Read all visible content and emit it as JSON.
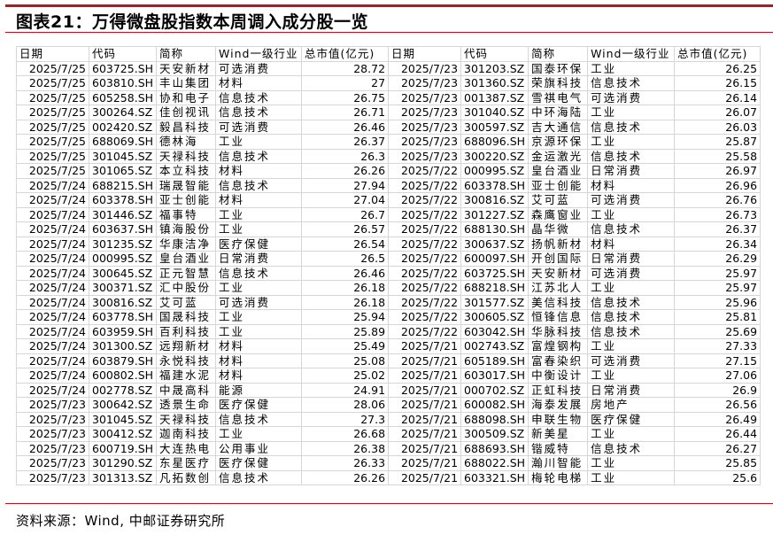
{
  "title": "图表21：万得微盘股指数本周调入成分股一览",
  "source": "资料来源：Wind, 中邮证券研究所",
  "accent_color": "#c0121e",
  "columns": [
    "日期",
    "代码",
    "简称",
    "Wind一级行业",
    "总市值(亿元)"
  ],
  "left_rows": [
    [
      "2025/7/25",
      "603725.SH",
      "天安新材",
      "可选消费",
      "28.72"
    ],
    [
      "2025/7/25",
      "603810.SH",
      "丰山集团",
      "材料",
      "27"
    ],
    [
      "2025/7/25",
      "605258.SH",
      "协和电子",
      "信息技术",
      "26.75"
    ],
    [
      "2025/7/25",
      "300264.SZ",
      "佳创视讯",
      "信息技术",
      "26.71"
    ],
    [
      "2025/7/25",
      "002420.SZ",
      "毅昌科技",
      "可选消费",
      "26.46"
    ],
    [
      "2025/7/25",
      "688069.SH",
      "德林海",
      "工业",
      "26.37"
    ],
    [
      "2025/7/25",
      "301045.SZ",
      "天禄科技",
      "信息技术",
      "26.3"
    ],
    [
      "2025/7/25",
      "301065.SZ",
      "本立科技",
      "材料",
      "26.26"
    ],
    [
      "2025/7/24",
      "688215.SH",
      "瑞晟智能",
      "信息技术",
      "27.94"
    ],
    [
      "2025/7/24",
      "603378.SH",
      "亚士创能",
      "材料",
      "27.04"
    ],
    [
      "2025/7/24",
      "301446.SZ",
      "福事特",
      "工业",
      "26.7"
    ],
    [
      "2025/7/24",
      "603637.SH",
      "镇海股份",
      "工业",
      "26.57"
    ],
    [
      "2025/7/24",
      "301235.SZ",
      "华康洁净",
      "医疗保健",
      "26.54"
    ],
    [
      "2025/7/24",
      "000995.SZ",
      "皇台酒业",
      "日常消费",
      "26.5"
    ],
    [
      "2025/7/24",
      "300645.SZ",
      "正元智慧",
      "信息技术",
      "26.46"
    ],
    [
      "2025/7/24",
      "300371.SZ",
      "汇中股份",
      "工业",
      "26.18"
    ],
    [
      "2025/7/24",
      "300816.SZ",
      "艾可蓝",
      "可选消费",
      "26.18"
    ],
    [
      "2025/7/24",
      "603778.SH",
      "国晟科技",
      "工业",
      "25.94"
    ],
    [
      "2025/7/24",
      "603959.SH",
      "百利科技",
      "工业",
      "25.89"
    ],
    [
      "2025/7/24",
      "301300.SZ",
      "远翔新材",
      "材料",
      "25.49"
    ],
    [
      "2025/7/24",
      "603879.SH",
      "永悦科技",
      "材料",
      "25.08"
    ],
    [
      "2025/7/24",
      "600802.SH",
      "福建水泥",
      "材料",
      "25.02"
    ],
    [
      "2025/7/24",
      "002778.SZ",
      "中晟高科",
      "能源",
      "24.91"
    ],
    [
      "2025/7/23",
      "300642.SZ",
      "透景生命",
      "医疗保健",
      "28.06"
    ],
    [
      "2025/7/23",
      "301045.SZ",
      "天禄科技",
      "信息技术",
      "27.3"
    ],
    [
      "2025/7/23",
      "300412.SZ",
      "迦南科技",
      "工业",
      "26.68"
    ],
    [
      "2025/7/23",
      "600719.SH",
      "大连热电",
      "公用事业",
      "26.38"
    ],
    [
      "2025/7/23",
      "301290.SZ",
      "东星医疗",
      "医疗保健",
      "26.33"
    ],
    [
      "2025/7/23",
      "301313.SZ",
      "凡拓数创",
      "信息技术",
      "26.26"
    ]
  ],
  "right_rows": [
    [
      "2025/7/23",
      "301203.SZ",
      "国泰环保",
      "工业",
      "26.25"
    ],
    [
      "2025/7/23",
      "301360.SZ",
      "荣旗科技",
      "信息技术",
      "26.15"
    ],
    [
      "2025/7/23",
      "001387.SZ",
      "雪祺电气",
      "可选消费",
      "26.14"
    ],
    [
      "2025/7/23",
      "301040.SZ",
      "中环海陆",
      "工业",
      "26.07"
    ],
    [
      "2025/7/23",
      "300597.SZ",
      "吉大通信",
      "信息技术",
      "26.03"
    ],
    [
      "2025/7/23",
      "688096.SH",
      "京源环保",
      "工业",
      "25.87"
    ],
    [
      "2025/7/23",
      "300220.SZ",
      "金运激光",
      "信息技术",
      "25.58"
    ],
    [
      "2025/7/22",
      "000995.SZ",
      "皇台酒业",
      "日常消费",
      "26.97"
    ],
    [
      "2025/7/22",
      "603378.SH",
      "亚士创能",
      "材料",
      "26.96"
    ],
    [
      "2025/7/22",
      "300816.SZ",
      "艾可蓝",
      "可选消费",
      "26.76"
    ],
    [
      "2025/7/22",
      "301227.SZ",
      "森鹰窗业",
      "工业",
      "26.73"
    ],
    [
      "2025/7/22",
      "688130.SH",
      "晶华微",
      "信息技术",
      "26.37"
    ],
    [
      "2025/7/22",
      "300637.SZ",
      "扬帆新材",
      "材料",
      "26.34"
    ],
    [
      "2025/7/22",
      "600097.SH",
      "开创国际",
      "日常消费",
      "26.29"
    ],
    [
      "2025/7/22",
      "603725.SH",
      "天安新材",
      "可选消费",
      "25.97"
    ],
    [
      "2025/7/22",
      "688218.SH",
      "江苏北人",
      "工业",
      "25.97"
    ],
    [
      "2025/7/22",
      "301577.SZ",
      "美信科技",
      "信息技术",
      "25.96"
    ],
    [
      "2025/7/22",
      "300605.SZ",
      "恒锋信息",
      "信息技术",
      "25.81"
    ],
    [
      "2025/7/22",
      "603042.SH",
      "华脉科技",
      "信息技术",
      "25.69"
    ],
    [
      "2025/7/21",
      "002743.SZ",
      "富煌钢构",
      "工业",
      "27.33"
    ],
    [
      "2025/7/21",
      "605189.SH",
      "富春染织",
      "可选消费",
      "27.15"
    ],
    [
      "2025/7/21",
      "603017.SH",
      "中衡设计",
      "工业",
      "27.06"
    ],
    [
      "2025/7/21",
      "000702.SZ",
      "正虹科技",
      "日常消费",
      "26.9"
    ],
    [
      "2025/7/21",
      "600082.SH",
      "海泰发展",
      "房地产",
      "26.56"
    ],
    [
      "2025/7/21",
      "688098.SH",
      "申联生物",
      "医疗保健",
      "26.49"
    ],
    [
      "2025/7/21",
      "300509.SZ",
      "新美星",
      "工业",
      "26.44"
    ],
    [
      "2025/7/21",
      "688693.SH",
      "锴威特",
      "信息技术",
      "26.27"
    ],
    [
      "2025/7/21",
      "688022.SH",
      "瀚川智能",
      "工业",
      "25.85"
    ],
    [
      "2025/7/21",
      "603321.SH",
      "梅轮电梯",
      "工业",
      "25.6"
    ]
  ]
}
